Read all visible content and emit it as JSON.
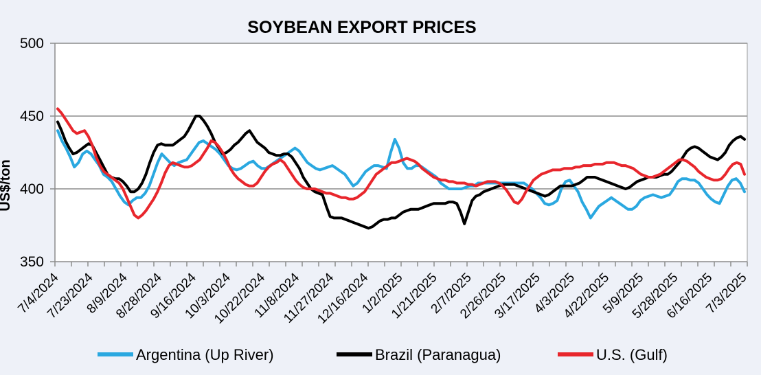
{
  "chart_data": {
    "type": "line",
    "title": "SOYBEAN EXPORT PRICES",
    "xlabel": "",
    "ylabel": "US$/ton",
    "ylim": [
      350,
      500
    ],
    "yticks": [
      "350",
      "400",
      "450",
      "500"
    ],
    "ytick_values": [
      350,
      400,
      450,
      500
    ],
    "grid": true,
    "legend_position": "bottom",
    "x_tick_labels": [
      "7/4/2024",
      "7/23/2024",
      "8/9/2024",
      "8/28/2024",
      "9/16/2024",
      "10/3/2024",
      "10/22/2024",
      "11/8/2024",
      "11/27/2024",
      "12/16/2024",
      "1/2/2025",
      "1/21/2025",
      "2/7/2025",
      "2/26/2025",
      "3/17/2025",
      "4/3/2025",
      "4/22/2025",
      "5/9/2025",
      "5/28/2025",
      "6/16/2025",
      "7/3/2025"
    ],
    "x_minor_ticks": 42,
    "series": [
      {
        "name": "Argentina (Up River)",
        "color": "#2aa8e0",
        "values": [
          440,
          433,
          428,
          422,
          415,
          418,
          424,
          426,
          424,
          420,
          416,
          410,
          408,
          405,
          400,
          395,
          391,
          389,
          392,
          394,
          394,
          397,
          402,
          410,
          418,
          424,
          421,
          418,
          416,
          418,
          419,
          420,
          424,
          428,
          432,
          433,
          431,
          429,
          427,
          424,
          420,
          416,
          414,
          413,
          414,
          416,
          418,
          419,
          416,
          414,
          414,
          416,
          418,
          420,
          422,
          424,
          426,
          428,
          426,
          422,
          418,
          416,
          414,
          413,
          414,
          415,
          416,
          414,
          412,
          410,
          406,
          402,
          404,
          408,
          412,
          414,
          416,
          416,
          415,
          414,
          425,
          434,
          428,
          418,
          414,
          414,
          416,
          416,
          414,
          412,
          410,
          408,
          404,
          402,
          400,
          400,
          400,
          400,
          401,
          402,
          402,
          404,
          404,
          404,
          404,
          404,
          404,
          404,
          404,
          404,
          404,
          404,
          404,
          402,
          400,
          397,
          394,
          390,
          389,
          390,
          392,
          400,
          405,
          406,
          402,
          398,
          391,
          386,
          380,
          384,
          388,
          390,
          392,
          394,
          392,
          390,
          388,
          386,
          386,
          388,
          392,
          394,
          395,
          396,
          395,
          394,
          395,
          396,
          400,
          405,
          407,
          407,
          406,
          406,
          404,
          400,
          396,
          393,
          391,
          390,
          396,
          402,
          406,
          407,
          404,
          398
        ]
      },
      {
        "name": "Brazil (Paranagua)",
        "color": "#000000",
        "values": [
          446,
          440,
          433,
          428,
          424,
          425,
          427,
          429,
          431,
          430,
          425,
          420,
          415,
          410,
          408,
          407,
          407,
          405,
          402,
          398,
          398,
          400,
          404,
          410,
          418,
          425,
          430,
          431,
          430,
          430,
          430,
          432,
          434,
          436,
          440,
          445,
          450,
          450,
          447,
          443,
          438,
          432,
          428,
          424,
          425,
          427,
          430,
          432,
          435,
          438,
          440,
          436,
          432,
          430,
          428,
          425,
          424,
          423,
          423,
          424,
          424,
          422,
          418,
          414,
          408,
          404,
          400,
          398,
          397,
          396,
          388,
          381,
          380,
          380,
          380,
          379,
          378,
          377,
          376,
          375,
          374,
          373,
          374,
          376,
          378,
          379,
          379,
          380,
          380,
          382,
          384,
          385,
          386,
          386,
          386,
          387,
          388,
          389,
          390,
          390,
          390,
          390,
          391,
          391,
          390,
          384,
          376,
          384,
          392,
          395,
          396,
          398,
          399,
          400,
          401,
          402,
          403,
          403,
          403,
          403,
          402,
          401,
          400,
          399,
          398,
          397,
          396,
          395,
          396,
          398,
          400,
          402,
          402,
          402,
          402,
          403,
          404,
          406,
          408,
          408,
          408,
          407,
          406,
          405,
          404,
          403,
          402,
          401,
          400,
          401,
          403,
          405,
          406,
          407,
          408,
          408,
          408,
          409,
          410,
          410,
          412,
          415,
          418,
          422,
          426,
          428,
          429,
          428,
          426,
          424,
          422,
          421,
          420,
          422,
          425,
          430,
          433,
          435,
          436,
          434
        ]
      },
      {
        "name": "U.S. (Gulf)",
        "color": "#e8262c",
        "values": [
          455,
          452,
          448,
          444,
          440,
          438,
          439,
          440,
          436,
          430,
          422,
          416,
          412,
          410,
          408,
          406,
          404,
          400,
          394,
          388,
          382,
          380,
          382,
          385,
          389,
          393,
          398,
          404,
          411,
          416,
          418,
          417,
          416,
          415,
          415,
          416,
          418,
          420,
          424,
          428,
          433,
          432,
          429,
          425,
          420,
          414,
          410,
          407,
          405,
          403,
          402,
          402,
          404,
          408,
          412,
          415,
          417,
          418,
          420,
          418,
          414,
          410,
          406,
          403,
          401,
          400,
          400,
          400,
          399,
          398,
          397,
          397,
          396,
          395,
          394,
          394,
          393,
          393,
          394,
          396,
          398,
          402,
          406,
          410,
          412,
          414,
          416,
          418,
          418,
          419,
          420,
          421,
          420,
          419,
          417,
          414,
          412,
          410,
          408,
          407,
          406,
          406,
          405,
          405,
          404,
          404,
          404,
          403,
          403,
          402,
          403,
          404,
          405,
          405,
          405,
          404,
          402,
          399,
          395,
          391,
          390,
          393,
          398,
          402,
          406,
          408,
          410,
          411,
          412,
          413,
          413,
          413,
          414,
          414,
          414,
          415,
          415,
          416,
          416,
          416,
          417,
          417,
          417,
          418,
          418,
          418,
          417,
          416,
          416,
          415,
          414,
          412,
          410,
          409,
          408,
          408,
          409,
          410,
          412,
          414,
          416,
          418,
          420,
          420,
          419,
          417,
          415,
          412,
          410,
          408,
          407,
          406,
          406,
          407,
          410,
          414,
          417,
          418,
          417,
          410
        ]
      }
    ]
  }
}
